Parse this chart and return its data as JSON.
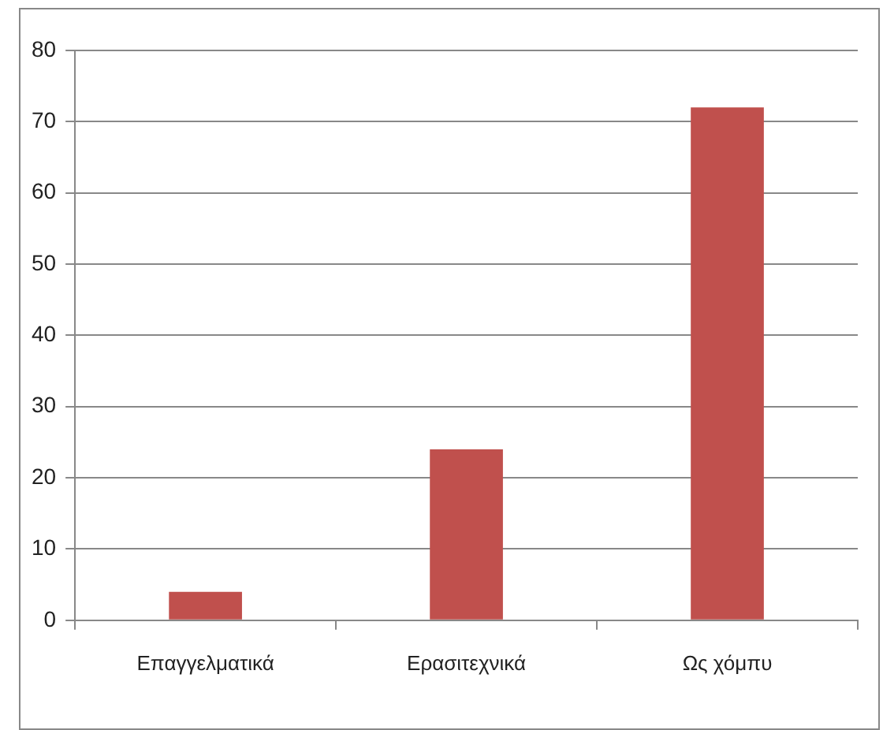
{
  "chart_data": {
    "type": "bar",
    "categories": [
      "Επαγγελματικά",
      "Ερασιτεχνικά",
      "Ως χόμπυ"
    ],
    "values": [
      4,
      24,
      72
    ],
    "color": "#c0504d",
    "ylim": [
      0,
      80
    ],
    "yticks": [
      0,
      10,
      20,
      30,
      40,
      50,
      60,
      70,
      80
    ],
    "grid": "y",
    "legend": false
  }
}
